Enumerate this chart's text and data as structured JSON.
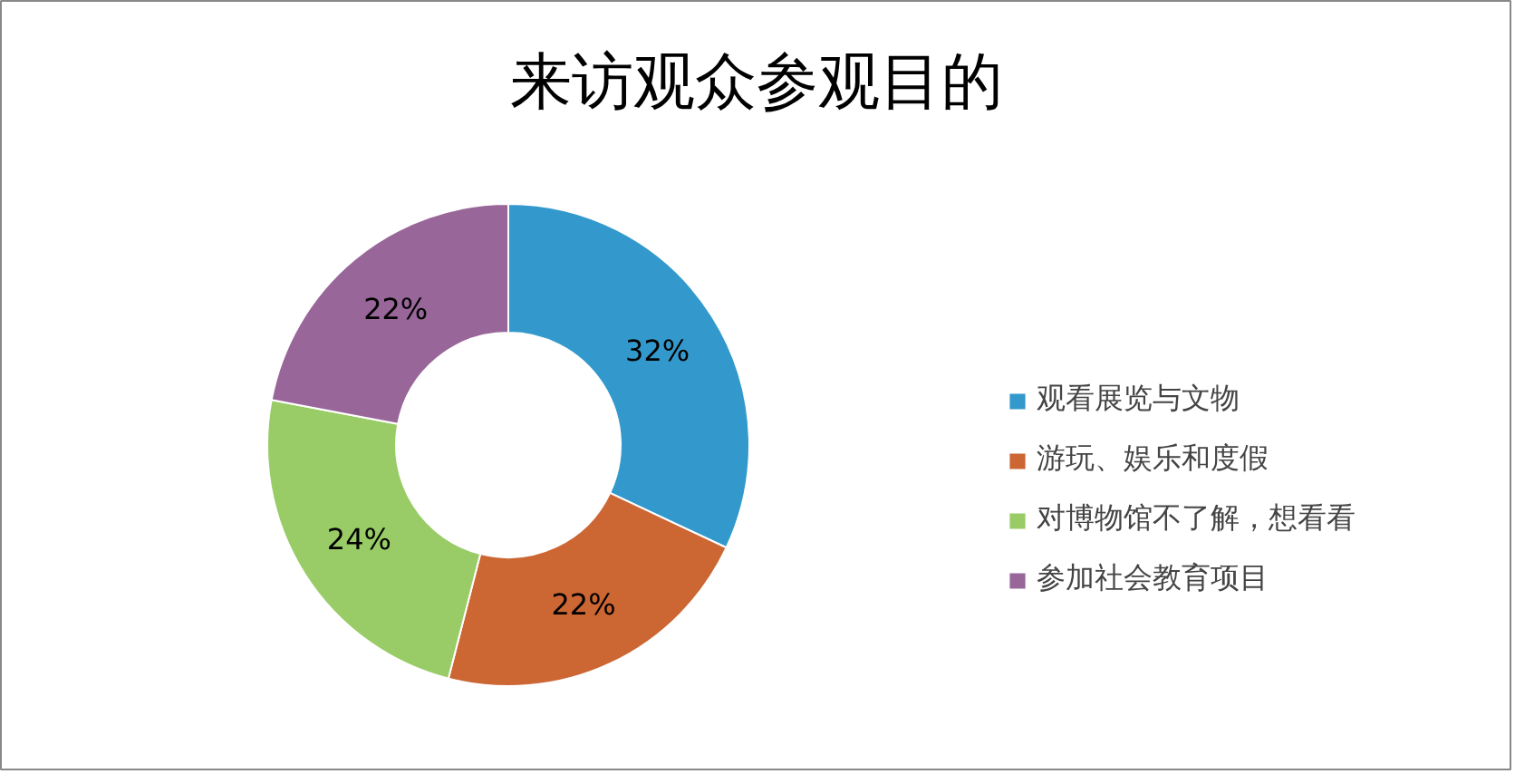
{
  "chart_data": {
    "type": "donut",
    "title": "来访观众参观目的",
    "categories": [
      "观看展览与文物",
      "游玩、娱乐和度假",
      "对博物馆不了解，想看看",
      "参加社会教育项目"
    ],
    "values": [
      32,
      22,
      24,
      22
    ],
    "colors": [
      "#3399cc",
      "#cc6633",
      "#99cc66",
      "#996699"
    ],
    "value_labels": [
      "32%",
      "22%",
      "24%",
      "22%"
    ],
    "legend": "right"
  }
}
